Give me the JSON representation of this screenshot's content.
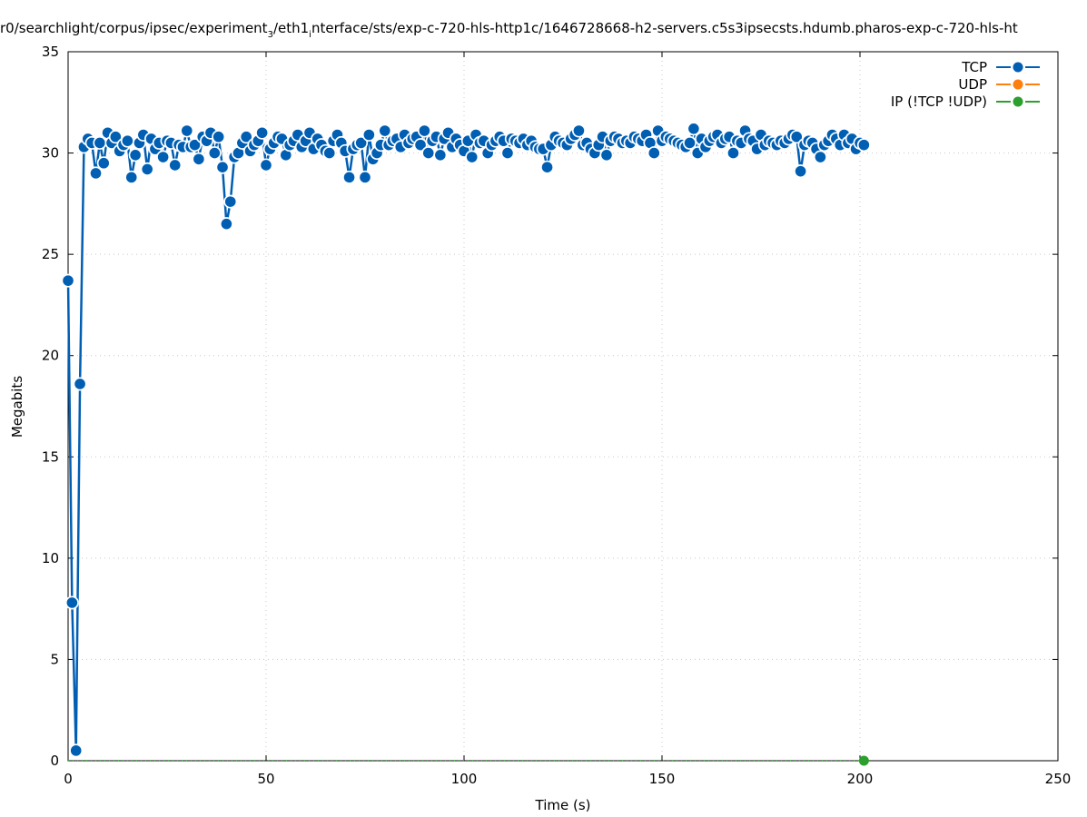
{
  "chart_data": {
    "type": "line",
    "title_parts": [
      "r0/searchlight/corpus/ipsec/experiment",
      "3",
      "/eth1",
      "i",
      "nterface/sts/exp-c-720-hls-http1c/1646728668-h2-servers.c5s3ipsecsts.hdumb.pharos-exp-c-720-hls-ht"
    ],
    "xlabel": "Time (s)",
    "ylabel": "Megabits",
    "xlim": [
      0,
      250
    ],
    "ylim": [
      0,
      35
    ],
    "xticks": [
      0,
      50,
      100,
      150,
      200,
      250
    ],
    "yticks": [
      0,
      5,
      10,
      15,
      20,
      25,
      30,
      35
    ],
    "grid": true,
    "legend_position": "top-right",
    "series": [
      {
        "name": "TCP",
        "color": "#005eb3",
        "x_start": 0,
        "x_step": 1,
        "values": [
          23.7,
          7.8,
          0.5,
          18.6,
          30.3,
          30.7,
          30.5,
          29.0,
          30.5,
          29.5,
          31.0,
          30.5,
          30.8,
          30.1,
          30.4,
          30.6,
          28.8,
          29.9,
          30.5,
          30.9,
          29.2,
          30.7,
          30.2,
          30.5,
          29.8,
          30.6,
          30.5,
          29.4,
          30.4,
          30.3,
          31.1,
          30.3,
          30.4,
          29.7,
          30.8,
          30.6,
          31.0,
          30.0,
          30.8,
          29.3,
          26.5,
          27.6,
          29.8,
          30.0,
          30.5,
          30.8,
          30.1,
          30.4,
          30.6,
          31.0,
          29.4,
          30.2,
          30.5,
          30.8,
          30.7,
          29.9,
          30.4,
          30.6,
          30.9,
          30.3,
          30.6,
          31.0,
          30.2,
          30.7,
          30.4,
          30.1,
          30.0,
          30.6,
          30.9,
          30.5,
          30.1,
          28.8,
          30.2,
          30.4,
          30.5,
          28.8,
          30.9,
          29.7,
          30.0,
          30.4,
          31.1,
          30.4,
          30.6,
          30.7,
          30.3,
          30.9,
          30.5,
          30.7,
          30.8,
          30.4,
          31.1,
          30.0,
          30.6,
          30.8,
          29.9,
          30.7,
          31.0,
          30.3,
          30.7,
          30.4,
          30.1,
          30.6,
          29.8,
          30.9,
          30.5,
          30.6,
          30.0,
          30.4,
          30.6,
          30.8,
          30.6,
          30.0,
          30.7,
          30.6,
          30.5,
          30.7,
          30.4,
          30.6,
          30.3,
          30.2,
          30.2,
          29.3,
          30.4,
          30.8,
          30.6,
          30.5,
          30.4,
          30.7,
          30.9,
          31.1,
          30.4,
          30.5,
          30.2,
          30.0,
          30.4,
          30.8,
          29.9,
          30.6,
          30.8,
          30.7,
          30.5,
          30.6,
          30.5,
          30.8,
          30.7,
          30.6,
          30.9,
          30.5,
          30.0,
          31.1,
          30.6,
          30.8,
          30.7,
          30.6,
          30.5,
          30.4,
          30.3,
          30.5,
          31.2,
          30.0,
          30.7,
          30.3,
          30.6,
          30.8,
          30.9,
          30.5,
          30.7,
          30.8,
          30.0,
          30.6,
          30.5,
          31.1,
          30.7,
          30.6,
          30.2,
          30.9,
          30.4,
          30.6,
          30.5,
          30.4,
          30.6,
          30.5,
          30.7,
          30.9,
          30.8,
          29.1,
          30.4,
          30.6,
          30.5,
          30.2,
          29.8,
          30.4,
          30.6,
          30.9,
          30.7,
          30.4,
          30.9,
          30.5,
          30.7,
          30.2,
          30.5,
          30.4
        ]
      },
      {
        "name": "UDP",
        "color": "#ff7f0e",
        "values": []
      },
      {
        "name": "IP (!TCP  !UDP)",
        "color": "#2ca02c",
        "x_start": 0,
        "x_step": 1,
        "constant_value": 0,
        "count": 202
      }
    ]
  }
}
